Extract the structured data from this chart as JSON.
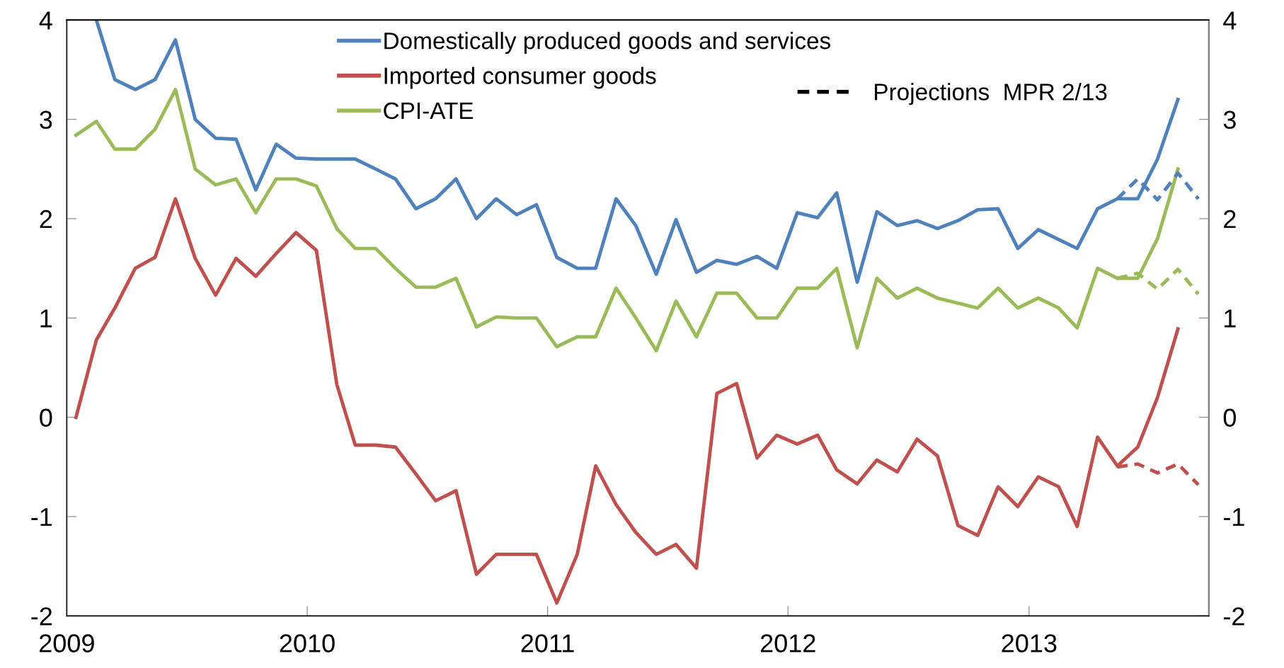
{
  "chart_data": {
    "type": "line",
    "x": [
      "2009-01-15",
      "2009-02-15",
      "2009-03-15",
      "2009-04-15",
      "2009-05-15",
      "2009-06-15",
      "2009-07-15",
      "2009-08-15",
      "2009-09-15",
      "2009-10-15",
      "2009-11-15",
      "2009-12-15",
      "2010-01-15",
      "2010-02-15",
      "2010-03-15",
      "2010-04-15",
      "2010-05-15",
      "2010-06-15",
      "2010-07-15",
      "2010-08-15",
      "2010-09-15",
      "2010-10-15",
      "2010-11-15",
      "2010-12-15",
      "2011-01-15",
      "2011-02-15",
      "2011-03-15",
      "2011-04-15",
      "2011-05-15",
      "2011-06-15",
      "2011-07-15",
      "2011-08-15",
      "2011-09-15",
      "2011-10-15",
      "2011-11-15",
      "2011-12-15",
      "2012-01-15",
      "2012-02-15",
      "2012-03-15",
      "2012-04-15",
      "2012-05-15",
      "2012-06-15",
      "2012-07-15",
      "2012-08-15",
      "2012-09-15",
      "2012-10-15",
      "2012-11-15",
      "2012-12-15",
      "2013-01-15",
      "2013-02-15",
      "2013-03-15",
      "2013-04-15",
      "2013-05-15",
      "2013-06-15",
      "2013-07-15",
      "2013-08-15"
    ],
    "series": [
      {
        "name": "Domestically produced goods and services",
        "color": "#4f81bd",
        "values": [
          null,
          4.0,
          3.4,
          3.3,
          3.4,
          3.8,
          3.0,
          2.81,
          2.8,
          2.29,
          2.75,
          2.61,
          2.6,
          2.6,
          2.6,
          2.5,
          2.4,
          2.1,
          2.2,
          2.4,
          2.0,
          2.2,
          2.04,
          2.14,
          1.61,
          1.5,
          1.5,
          2.2,
          1.93,
          1.44,
          1.99,
          1.46,
          1.58,
          1.54,
          1.62,
          1.5,
          2.06,
          2.01,
          2.26,
          1.36,
          2.07,
          1.93,
          1.98,
          1.9,
          1.98,
          2.09,
          2.1,
          1.7,
          1.89,
          1.79,
          1.7,
          2.1,
          2.2,
          2.2,
          2.6,
          3.2
        ]
      },
      {
        "name": "Imported consumer goods",
        "color": "#c0504d",
        "values": [
          0.0,
          0.78,
          1.1,
          1.5,
          1.61,
          2.2,
          1.6,
          1.23,
          1.6,
          1.42,
          1.65,
          1.86,
          1.68,
          0.33,
          -0.28,
          -0.28,
          -0.3,
          -0.57,
          -0.84,
          -0.74,
          -1.58,
          -1.38,
          -1.38,
          -1.38,
          -1.87,
          -1.38,
          -0.49,
          -0.88,
          -1.16,
          -1.38,
          -1.28,
          -1.52,
          0.24,
          0.34,
          -0.41,
          -0.18,
          -0.27,
          -0.18,
          -0.53,
          -0.67,
          -0.43,
          -0.55,
          -0.22,
          -0.39,
          -1.09,
          -1.19,
          -0.7,
          -0.9,
          -0.6,
          -0.7,
          -1.1,
          -0.2,
          -0.49,
          -0.3,
          0.2,
          0.89
        ]
      },
      {
        "name": "CPI-ATE",
        "color": "#9bbb59",
        "values": [
          2.84,
          2.98,
          2.7,
          2.7,
          2.9,
          3.3,
          2.5,
          2.34,
          2.4,
          2.06,
          2.4,
          2.4,
          2.33,
          1.9,
          1.7,
          1.7,
          1.5,
          1.31,
          1.31,
          1.4,
          0.91,
          1.01,
          1.0,
          1.0,
          0.71,
          0.81,
          0.81,
          1.3,
          1.0,
          0.67,
          1.17,
          0.81,
          1.25,
          1.25,
          1.0,
          1.0,
          1.3,
          1.3,
          1.5,
          0.7,
          1.4,
          1.2,
          1.3,
          1.2,
          1.15,
          1.1,
          1.3,
          1.1,
          1.2,
          1.1,
          0.9,
          1.5,
          1.4,
          1.4,
          1.8,
          2.5
        ]
      },
      {
        "color": "#4f81bd",
        "line_style": "dashed",
        "x": [
          "2013-05-15",
          "2013-06-15",
          "2013-07-15",
          "2013-08-15",
          "2013-09-15"
        ],
        "values": [
          2.2,
          2.4,
          2.19,
          2.46,
          2.2
        ]
      },
      {
        "color": "#c0504d",
        "line_style": "dashed",
        "x": [
          "2013-05-15",
          "2013-06-15",
          "2013-07-15",
          "2013-08-15",
          "2013-09-15"
        ],
        "values": [
          -0.5,
          -0.47,
          -0.56,
          -0.47,
          -0.68
        ]
      },
      {
        "color": "#9bbb59",
        "line_style": "dashed",
        "x": [
          "2013-05-15",
          "2013-06-15",
          "2013-07-15",
          "2013-08-15",
          "2013-09-15"
        ],
        "values": [
          1.4,
          1.45,
          1.29,
          1.49,
          1.24
        ]
      }
    ],
    "annotations": [
      "Projections  MPR 2/13"
    ],
    "xlim": [
      "2009-01-01",
      "2013-10-01"
    ],
    "xticks": [
      {
        "value": "2009-01-01",
        "label": "2009"
      },
      {
        "value": "2010-01-01",
        "label": "2010"
      },
      {
        "value": "2011-01-01",
        "label": "2011"
      },
      {
        "value": "2012-01-01",
        "label": "2012"
      },
      {
        "value": "2013-01-01",
        "label": "2013"
      }
    ],
    "ylim": [
      -2,
      4
    ],
    "yticks": [
      -2,
      -1,
      0,
      1,
      2,
      3,
      4
    ],
    "y2lim": [
      -2,
      4
    ],
    "y2ticks": [
      -2,
      -1,
      0,
      1,
      2,
      3,
      4
    ],
    "grid": false,
    "legend": "top",
    "line_style": "solid",
    "marker": "none"
  }
}
